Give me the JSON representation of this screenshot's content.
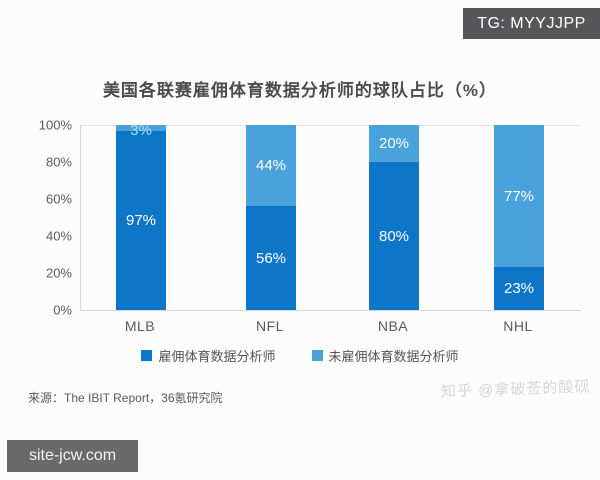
{
  "overlays": {
    "tg_badge": "TG: MYYJJPP",
    "site_badge": "site-jcw.com",
    "watermark": "知乎 @拿破莶的酸砚"
  },
  "chart_data": {
    "type": "bar",
    "variant": "stacked-percentage-column",
    "title": "美国各联赛雇佣体育数据分析师的球队占比（%）",
    "categories": [
      "MLB",
      "NFL",
      "NBA",
      "NHL"
    ],
    "series": [
      {
        "name": "雇佣体育数据分析师",
        "color": "#0d76c9",
        "values": [
          97,
          56,
          80,
          23
        ],
        "labels": [
          "97%",
          "56%",
          "80%",
          "23%"
        ]
      },
      {
        "name": "未雇佣体育数据分析师",
        "color": "#49a2dc",
        "values": [
          3,
          44,
          20,
          77
        ],
        "labels": [
          "3%",
          "44%",
          "20%",
          "77%"
        ]
      }
    ],
    "xlabel": "",
    "ylabel": "",
    "ylim": [
      0,
      100
    ],
    "y_ticks": [
      "100%",
      "80%",
      "60%",
      "40%",
      "20%",
      "0%"
    ],
    "grid": "top-line-only",
    "legend_position": "bottom",
    "source": "来源：The IBIT Report，36氪研究院"
  }
}
